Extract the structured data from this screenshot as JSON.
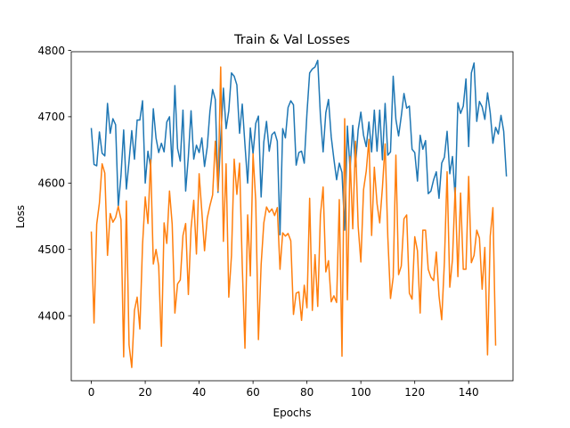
{
  "chart_data": {
    "type": "line",
    "title": "Train & Val Losses",
    "xlabel": "Epochs",
    "ylabel": "Loss",
    "xlim": [
      -7.45,
      156.45
    ],
    "ylim": [
      4302,
      4798
    ],
    "xticks": [
      0,
      20,
      40,
      60,
      80,
      100,
      120,
      140
    ],
    "yticks": [
      4400,
      4500,
      4600,
      4700,
      4800
    ],
    "grid": false,
    "legend": "none",
    "series": [
      {
        "color": "#1f77b4",
        "values": [
          4682,
          4628,
          4626,
          4677,
          4645,
          4641,
          4720,
          4675,
          4697,
          4688,
          4565,
          4611,
          4680,
          4591,
          4633,
          4679,
          4636,
          4695,
          4695,
          4724,
          4600,
          4648,
          4624,
          4712,
          4668,
          4646,
          4660,
          4647,
          4692,
          4700,
          4625,
          4747,
          4652,
          4633,
          4710,
          4588,
          4640,
          4709,
          4636,
          4657,
          4646,
          4668,
          4625,
          4654,
          4708,
          4741,
          4726,
          4586,
          4667,
          4743,
          4682,
          4709,
          4766,
          4761,
          4748,
          4675,
          4719,
          4658,
          4600,
          4683,
          4644,
          4690,
          4701,
          4579,
          4662,
          4693,
          4648,
          4673,
          4677,
          4663,
          4522,
          4682,
          4668,
          4714,
          4724,
          4718,
          4627,
          4646,
          4648,
          4630,
          4705,
          4766,
          4772,
          4775,
          4785,
          4701,
          4647,
          4706,
          4726,
          4670,
          4636,
          4605,
          4630,
          4616,
          4529,
          4686,
          4620,
          4687,
          4625,
          4680,
          4707,
          4672,
          4655,
          4692,
          4647,
          4710,
          4648,
          4710,
          4635,
          4720,
          4642,
          4647,
          4761,
          4696,
          4671,
          4701,
          4735,
          4713,
          4716,
          4651,
          4646,
          4603,
          4672,
          4651,
          4664,
          4584,
          4588,
          4605,
          4617,
          4577,
          4630,
          4639,
          4678,
          4614,
          4640,
          4578,
          4721,
          4705,
          4716,
          4757,
          4655,
          4766,
          4781,
          4693,
          4723,
          4715,
          4696,
          4736,
          4706,
          4660,
          4684,
          4674,
          4702,
          4678,
          4611
        ],
        "name": ""
      },
      {
        "color": "#ff7f0e",
        "values": [
          4526,
          4389,
          4538,
          4570,
          4629,
          4615,
          4491,
          4554,
          4541,
          4548,
          4565,
          4545,
          4338,
          4573,
          4356,
          4322,
          4408,
          4428,
          4380,
          4507,
          4579,
          4539,
          4635,
          4478,
          4500,
          4475,
          4354,
          4540,
          4509,
          4588,
          4538,
          4404,
          4448,
          4454,
          4521,
          4539,
          4432,
          4532,
          4574,
          4493,
          4614,
          4557,
          4498,
          4547,
          4566,
          4582,
          4663,
          4588,
          4775,
          4512,
          4629,
          4428,
          4491,
          4636,
          4583,
          4630,
          4475,
          4351,
          4552,
          4460,
          4644,
          4573,
          4364,
          4477,
          4540,
          4564,
          4556,
          4561,
          4551,
          4563,
          4470,
          4525,
          4520,
          4524,
          4513,
          4402,
          4434,
          4436,
          4393,
          4446,
          4412,
          4577,
          4408,
          4492,
          4414,
          4552,
          4594,
          4466,
          4483,
          4421,
          4430,
          4420,
          4575,
          4339,
          4697,
          4424,
          4640,
          4531,
          4663,
          4535,
          4481,
          4590,
          4618,
          4666,
          4521,
          4624,
          4569,
          4540,
          4593,
          4659,
          4519,
          4426,
          4458,
          4642,
          4462,
          4475,
          4546,
          4552,
          4434,
          4425,
          4519,
          4498,
          4404,
          4529,
          4529,
          4470,
          4458,
          4453,
          4496,
          4430,
          4394,
          4481,
          4617,
          4443,
          4485,
          4593,
          4459,
          4585,
          4470,
          4470,
          4610,
          4480,
          4491,
          4529,
          4517,
          4440,
          4503,
          4341,
          4520,
          4563,
          4356
        ],
        "name": ""
      }
    ]
  }
}
